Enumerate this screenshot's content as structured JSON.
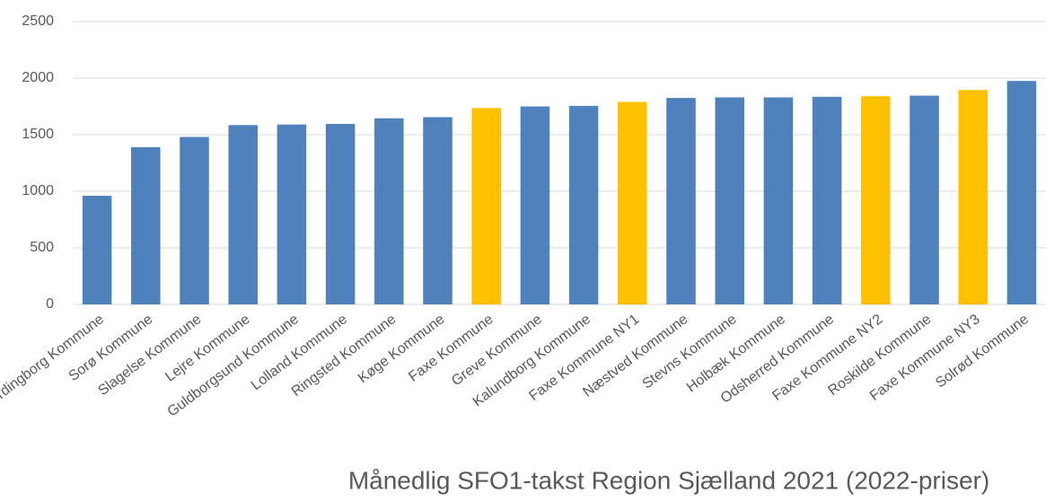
{
  "chart_data": {
    "type": "bar",
    "title": "Månedlig SFO1-takst Region Sjælland 2021 (2022-priser)",
    "categories": [
      "Vordingborg Kommune",
      "Sorø Kommune",
      "Slagelse Kommune",
      "Lejre Kommune",
      "Guldborgsund Kommune",
      "Lolland Kommune",
      "Ringsted Kommune",
      "Køge Kommune",
      "Faxe Kommune",
      "Greve Kommune",
      "Kalundborg Kommune",
      "Faxe Kommune NY1",
      "Næstved Kommune",
      "Stevns Kommune",
      "Holbæk Kommune",
      "Odsherred Kommune",
      "Faxe Kommune NY2",
      "Roskilde Kommune",
      "Faxe Kommune NY3",
      "Solrød Kommune"
    ],
    "values": [
      960,
      1390,
      1480,
      1585,
      1590,
      1595,
      1645,
      1655,
      1735,
      1750,
      1755,
      1790,
      1825,
      1830,
      1830,
      1835,
      1840,
      1845,
      1895,
      1975
    ],
    "colors": [
      "#4f81bd",
      "#4f81bd",
      "#4f81bd",
      "#4f81bd",
      "#4f81bd",
      "#4f81bd",
      "#4f81bd",
      "#4f81bd",
      "#ffc000",
      "#4f81bd",
      "#4f81bd",
      "#ffc000",
      "#4f81bd",
      "#4f81bd",
      "#4f81bd",
      "#4f81bd",
      "#ffc000",
      "#4f81bd",
      "#ffc000",
      "#4f81bd"
    ],
    "ylim": [
      0,
      2500
    ],
    "yticks": [
      0,
      500,
      1000,
      1500,
      2000,
      2500
    ],
    "grid": true
  }
}
